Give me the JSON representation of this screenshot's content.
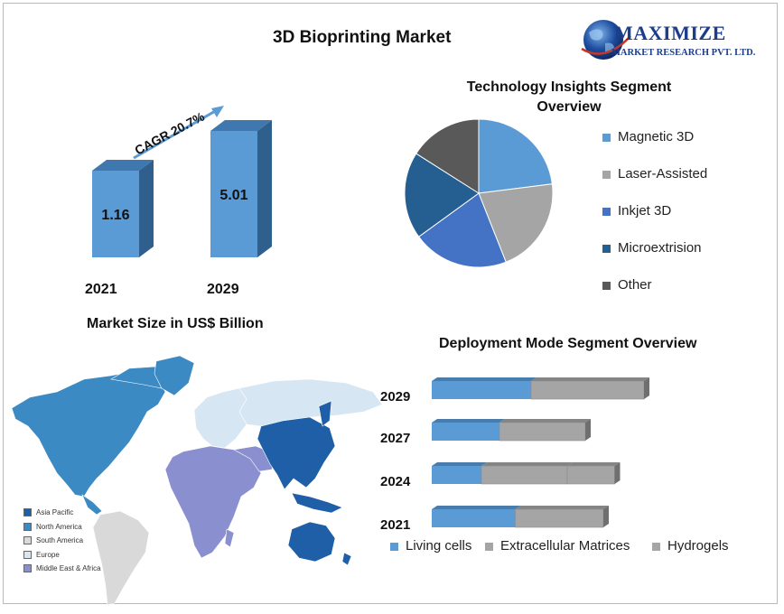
{
  "page": {
    "title": "3D Bioprinting Market"
  },
  "logo": {
    "name": "MAXIMIZE",
    "tagline": "MARKET RESEARCH PVT. LTD."
  },
  "colors": {
    "accent_blue": "#5b9bd5",
    "gray": "#a5a5a5",
    "royal_blue": "#4472c4",
    "dark_blue": "#255e91",
    "dark_gray": "#595959"
  },
  "chart_data": [
    {
      "type": "bar",
      "title": "Market Size in US$ Billion",
      "categories": [
        "2021",
        "2029"
      ],
      "values": [
        1.16,
        5.01
      ],
      "annotation": "CAGR 20.7%"
    },
    {
      "type": "pie",
      "title": "Technology Insights Segment Overview",
      "labels": [
        "Magnetic 3D",
        "Laser-Assisted",
        "Inkjet 3D",
        "Microextrision",
        "Other"
      ],
      "values": [
        23,
        21,
        21,
        19,
        16
      ],
      "colors": [
        "#5b9bd5",
        "#a5a5a5",
        "#4472c4",
        "#255e91",
        "#595959"
      ],
      "legend": "right"
    },
    {
      "type": "bar",
      "orientation": "horizontal",
      "stacked": true,
      "title": "Deployment Mode Segment Overview",
      "categories": [
        "2029",
        "2027",
        "2024",
        "2021"
      ],
      "series": [
        {
          "name": "Living cells",
          "values": [
            44,
            30,
            22,
            37
          ],
          "color": "#5b9bd5"
        },
        {
          "name": "Extracellular Matrices",
          "values": [
            50,
            38,
            38,
            39
          ],
          "color": "#a5a5a5"
        },
        {
          "name": "Hydrogels",
          "values": [
            0,
            0,
            21,
            0
          ],
          "color": "#a5a5a5"
        }
      ],
      "legend": "bottom"
    },
    {
      "type": "map",
      "legend": [
        {
          "label": "Asia Pacific",
          "color": "#1f5fa8"
        },
        {
          "label": "North America",
          "color": "#3b8ac4"
        },
        {
          "label": "South America",
          "color": "#d9d9d9"
        },
        {
          "label": "Europe",
          "color": "#d6e6f3"
        },
        {
          "label": "Middle East & Africa",
          "color": "#8a8fcf"
        }
      ]
    }
  ]
}
